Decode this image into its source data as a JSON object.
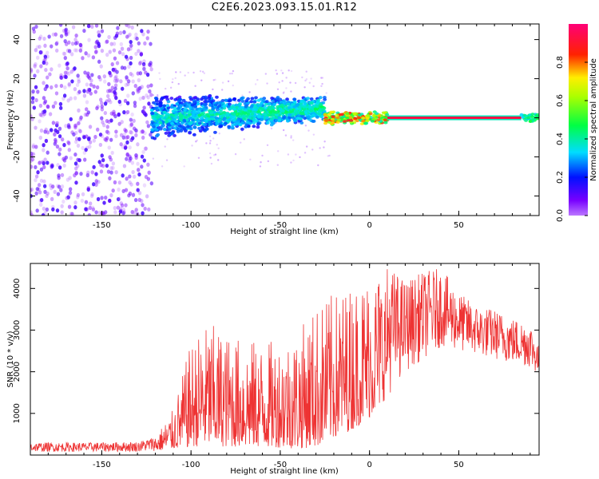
{
  "title": "C2E6.2023.093.15.01.R12",
  "colors": {
    "snr_line": "#ee3333",
    "frame": "#000000",
    "background": "#ffffff"
  },
  "chart_data": [
    {
      "type": "heatmap",
      "title": "C2E6.2023.093.15.01.R12",
      "xlabel": "Height of straight line (km)",
      "ylabel": "Frequency (Hz)",
      "xlim": [
        -190,
        95
      ],
      "ylim": [
        -50,
        48
      ],
      "xticks": [
        -150,
        -100,
        -50,
        0,
        50
      ],
      "yticks": [
        -40,
        -20,
        0,
        20,
        40
      ],
      "colormap": "gist_rainbow (purple → blue → cyan → green → yellow → red → magenta)",
      "colorbar": {
        "label": "Normalized spectral amplitude",
        "ticks": [
          0.0,
          0.2,
          0.4,
          0.6,
          0.8
        ],
        "range": [
          0.0,
          1.0
        ]
      },
      "regions": [
        {
          "x_range": [
            -190,
            -122
          ],
          "freq_range": [
            -50,
            48
          ],
          "amplitude": "low (~0.0–0.15), broadband noise"
        },
        {
          "x_range": [
            -122,
            -25
          ],
          "freq_range": [
            -15,
            12
          ],
          "amplitude": "0.1–0.45, band centered near 0 Hz"
        },
        {
          "x_range": [
            -25,
            10
          ],
          "freq_range": [
            -4,
            4
          ],
          "amplitude": "0.4–0.95, narrowing band"
        },
        {
          "x_range": [
            10,
            85
          ],
          "freq_range": [
            -1,
            1
          ],
          "amplitude": "~0.95 narrow line at 0 Hz"
        },
        {
          "x_range": [
            85,
            95
          ],
          "freq_range": [
            -3,
            3
          ],
          "amplitude": "0.3–0.5"
        }
      ]
    },
    {
      "type": "line",
      "xlabel": "Height of straight line (km)",
      "ylabel": "SNR (10 * v/v)",
      "xlim": [
        -190,
        95
      ],
      "ylim": [
        0,
        4600
      ],
      "xticks": [
        -150,
        -100,
        -50,
        0,
        50
      ],
      "yticks": [
        1000,
        2000,
        3000,
        4000
      ],
      "envelope": {
        "x": [
          -190,
          -160,
          -130,
          -120,
          -110,
          -100,
          -90,
          -80,
          -70,
          -60,
          -50,
          -40,
          -30,
          -20,
          -10,
          0,
          10,
          20,
          30,
          40,
          50,
          60,
          70,
          80,
          90,
          95
        ],
        "min": [
          80,
          80,
          80,
          100,
          150,
          200,
          220,
          200,
          200,
          200,
          180,
          150,
          200,
          400,
          600,
          900,
          1400,
          2000,
          2300,
          2600,
          2500,
          2400,
          2300,
          2200,
          2100,
          1900
        ],
        "max": [
          300,
          300,
          320,
          450,
          1100,
          2700,
          3200,
          2900,
          2800,
          2700,
          2800,
          3000,
          3600,
          3900,
          4100,
          4400,
          4600,
          4200,
          4400,
          4500,
          3900,
          3600,
          3500,
          3300,
          3200,
          2600
        ]
      }
    }
  ]
}
